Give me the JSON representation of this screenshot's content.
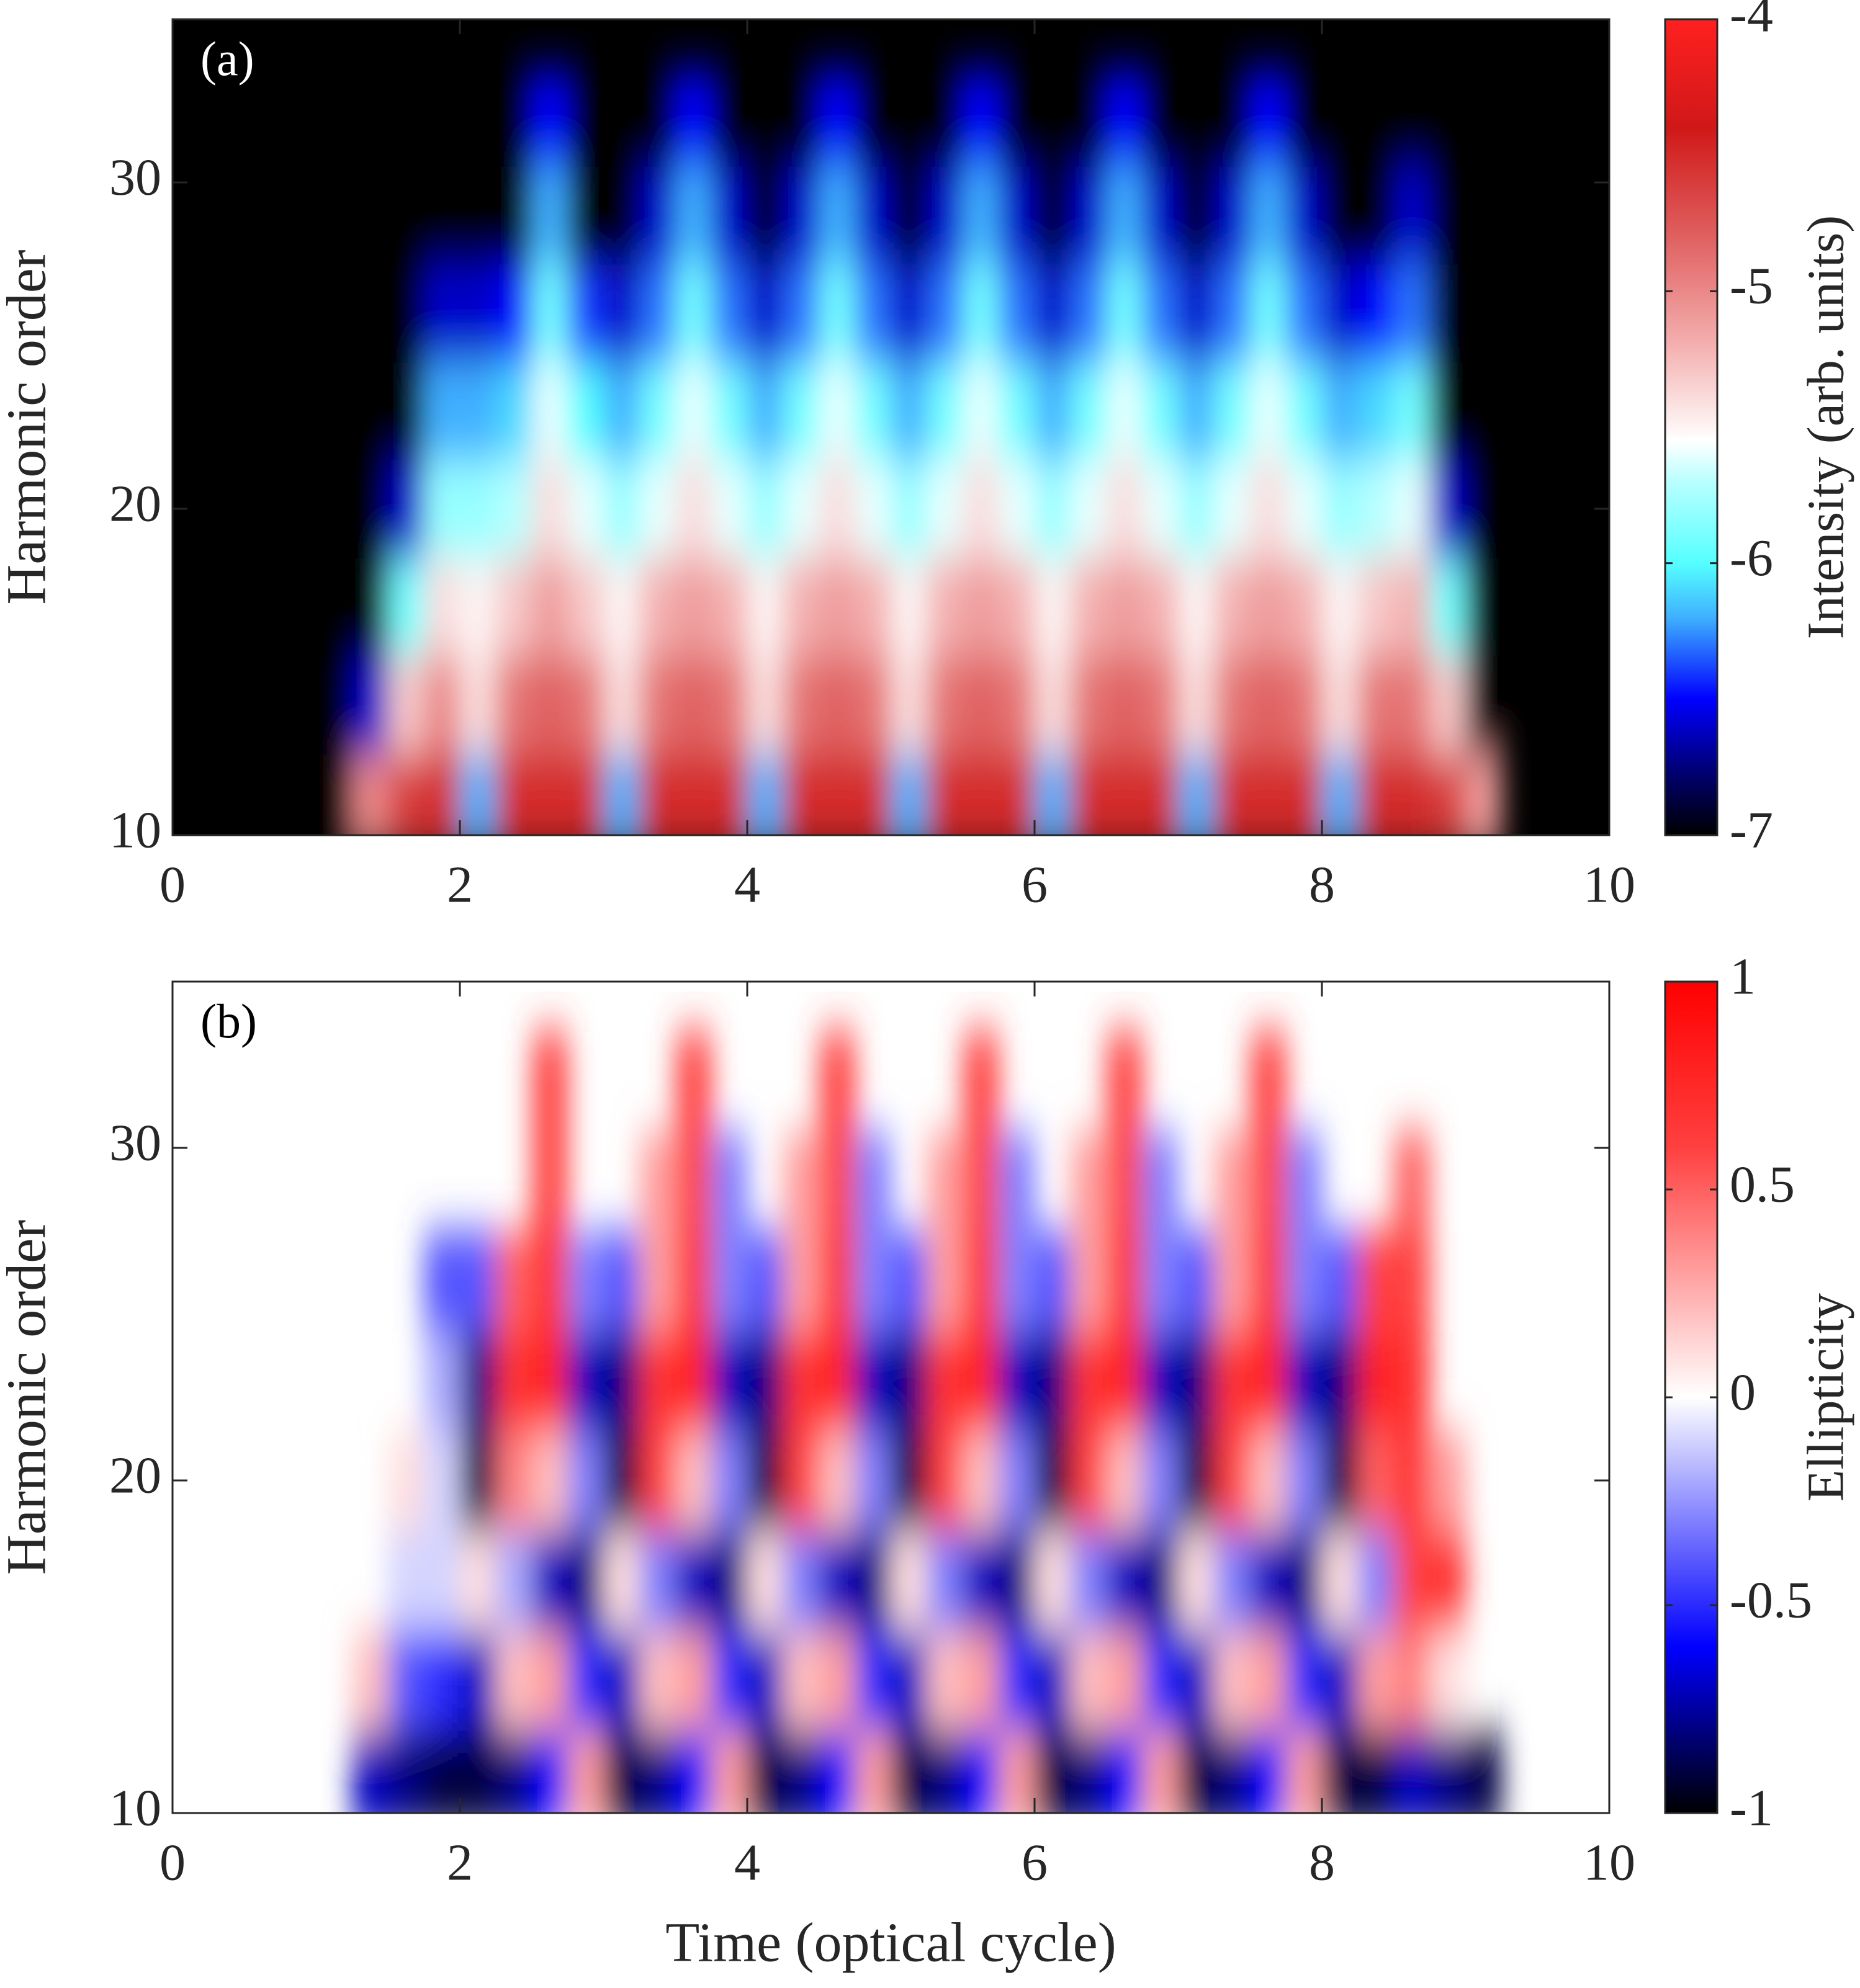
{
  "chart_data": [
    {
      "type": "heatmap",
      "annotation": "(a)",
      "ylabel": "Harmonic order",
      "clabel": "Intensity (arb. units)",
      "background": "#000000",
      "xlim": [
        0,
        10
      ],
      "xticks": [
        0,
        2,
        4,
        6,
        8,
        10
      ],
      "ylim": [
        10,
        35
      ],
      "yticks": [
        10,
        20,
        30
      ],
      "clim": [
        -7,
        -4
      ],
      "cticks": [
        -7,
        -6,
        -5,
        -4
      ],
      "colormap": [
        {
          "value": -7,
          "color": "#000000"
        },
        {
          "value": -6.75,
          "color": "#00007a"
        },
        {
          "value": -6.5,
          "color": "#0000ff"
        },
        {
          "value": -6.2,
          "color": "#3fb0ff"
        },
        {
          "value": -6,
          "color": "#55ffff"
        },
        {
          "value": -5.7,
          "color": "#b8ffff"
        },
        {
          "value": -5.55,
          "color": "#ffffff"
        },
        {
          "value": -5.2,
          "color": "#f4b0b0"
        },
        {
          "value": -4.8,
          "color": "#e06060"
        },
        {
          "value": -4.4,
          "color": "#d01818"
        },
        {
          "value": -4,
          "color": "#ff2020"
        }
      ],
      "x": [
        1.125,
        1.375,
        1.625,
        1.875,
        2.125,
        2.375,
        2.625,
        2.875,
        3.125,
        3.375,
        3.625,
        3.875,
        4.125,
        4.375,
        4.625,
        4.875,
        5.125,
        5.375,
        5.625,
        5.875,
        6.125,
        6.375,
        6.625,
        6.875,
        7.125,
        7.375,
        7.625,
        7.875,
        8.125,
        8.375,
        8.625,
        8.875,
        9.125
      ],
      "y": [
        11,
        14,
        17,
        20,
        23,
        26,
        29,
        32
      ],
      "z": [
        [
          -7,
          -5,
          -4.6,
          -4.5,
          -6.2,
          -4.5,
          -4.5,
          -4.5,
          -6.2,
          -4.5,
          -4.5,
          -4.5,
          -6.2,
          -4.5,
          -4.5,
          -4.5,
          -6.2,
          -4.5,
          -4.5,
          -4.5,
          -6.2,
          -4.5,
          -4.5,
          -4.5,
          -6.2,
          -4.5,
          -4.5,
          -4.5,
          -6.2,
          -4.5,
          -4.5,
          -4.6,
          -5.1
        ],
        [
          -7,
          -6.6,
          -5.3,
          -5,
          -5.4,
          -4.9,
          -4.8,
          -4.9,
          -5.4,
          -4.9,
          -4.8,
          -4.9,
          -5.4,
          -4.9,
          -4.8,
          -4.9,
          -5.4,
          -4.9,
          -4.8,
          -4.9,
          -5.4,
          -4.9,
          -4.8,
          -4.9,
          -5.4,
          -4.9,
          -4.8,
          -4.9,
          -5.4,
          -4.9,
          -4.9,
          -5.3,
          -7
        ],
        [
          -7,
          -7,
          -5.9,
          -5.4,
          -5.5,
          -5.3,
          -5.1,
          -5.3,
          -5.5,
          -5.2,
          -5.1,
          -5.2,
          -5.5,
          -5.2,
          -5.1,
          -5.2,
          -5.5,
          -5.2,
          -5.1,
          -5.2,
          -5.5,
          -5.2,
          -5.1,
          -5.2,
          -5.5,
          -5.2,
          -5.1,
          -5.2,
          -5.5,
          -5.3,
          -5.2,
          -5.9,
          -7
        ],
        [
          -7,
          -7,
          -6.6,
          -5.8,
          -5.8,
          -5.7,
          -5.4,
          -5.6,
          -5.8,
          -5.6,
          -5.4,
          -5.6,
          -5.8,
          -5.6,
          -5.4,
          -5.6,
          -5.8,
          -5.6,
          -5.4,
          -5.6,
          -5.8,
          -5.6,
          -5.4,
          -5.6,
          -5.8,
          -5.6,
          -5.4,
          -5.6,
          -5.8,
          -5.7,
          -5.6,
          -6.6,
          -7
        ],
        [
          -7,
          -7,
          -7,
          -6.2,
          -6.2,
          -6.1,
          -5.6,
          -6,
          -6.2,
          -5.9,
          -5.6,
          -5.9,
          -6.2,
          -5.9,
          -5.6,
          -5.9,
          -6.2,
          -5.9,
          -5.6,
          -5.9,
          -6.2,
          -5.9,
          -5.6,
          -5.9,
          -6.2,
          -5.9,
          -5.6,
          -5.9,
          -6.2,
          -6.1,
          -5.9,
          -7,
          -7
        ],
        [
          -7,
          -7,
          -7,
          -6.6,
          -6.6,
          -6.5,
          -5.9,
          -6.4,
          -6.6,
          -6.3,
          -5.9,
          -6.3,
          -6.6,
          -6.3,
          -5.9,
          -6.3,
          -6.6,
          -6.3,
          -5.9,
          -6.3,
          -6.6,
          -6.3,
          -5.9,
          -6.3,
          -6.6,
          -6.3,
          -5.9,
          -6.3,
          -6.6,
          -6.5,
          -6.3,
          -7,
          -7
        ],
        [
          -7,
          -7,
          -7,
          -7,
          -7,
          -7,
          -6.2,
          -7,
          -7,
          -6.6,
          -6.2,
          -6.6,
          -7,
          -6.6,
          -6.2,
          -6.6,
          -7,
          -6.6,
          -6.2,
          -6.6,
          -7,
          -6.6,
          -6.2,
          -6.6,
          -7,
          -6.6,
          -6.2,
          -6.6,
          -7,
          -7,
          -6.6,
          -7,
          -7
        ],
        [
          -7,
          -7,
          -7,
          -7,
          -7,
          -7,
          -6.5,
          -7,
          -7,
          -7,
          -6.5,
          -7,
          -7,
          -7,
          -6.5,
          -7,
          -7,
          -7,
          -6.5,
          -7,
          -7,
          -7,
          -6.5,
          -7,
          -7,
          -7,
          -6.5,
          -7,
          -7,
          -7,
          -7,
          -7,
          -7
        ]
      ]
    },
    {
      "type": "heatmap",
      "annotation": "(b)",
      "ylabel": "Harmonic order",
      "clabel": "Ellipticity",
      "xlabel": "Time (optical cycle)",
      "background": "#ffffff",
      "xlim": [
        0,
        10
      ],
      "xticks": [
        0,
        2,
        4,
        6,
        8,
        10
      ],
      "ylim": [
        10,
        35
      ],
      "yticks": [
        10,
        20,
        30
      ],
      "clim": [
        -1,
        1
      ],
      "cticks": [
        -1,
        -0.5,
        0,
        0.5,
        1
      ],
      "colormap": [
        {
          "value": -1,
          "color": "#000000"
        },
        {
          "value": -0.8,
          "color": "#000080"
        },
        {
          "value": -0.6,
          "color": "#0000ff"
        },
        {
          "value": -0.3,
          "color": "#7f7fff"
        },
        {
          "value": 0,
          "color": "#ffffff"
        },
        {
          "value": 0.3,
          "color": "#ff9f9f"
        },
        {
          "value": 0.6,
          "color": "#ff4040"
        },
        {
          "value": 1,
          "color": "#ff0000"
        }
      ],
      "x": [
        1.125,
        1.375,
        1.625,
        1.875,
        2.125,
        2.375,
        2.625,
        2.875,
        3.125,
        3.375,
        3.625,
        3.875,
        4.125,
        4.375,
        4.625,
        4.875,
        5.125,
        5.375,
        5.625,
        5.875,
        6.125,
        6.375,
        6.625,
        6.875,
        7.125,
        7.375,
        7.625,
        7.875,
        8.125,
        8.375,
        8.625,
        8.875,
        9.125
      ],
      "y": [
        11,
        14,
        17,
        20,
        23,
        26,
        29,
        32
      ],
      "z": [
        [
          null,
          -0.7,
          -0.8,
          -0.9,
          -0.9,
          -0.8,
          -0.6,
          0.3,
          -0.9,
          -0.8,
          -0.6,
          0.3,
          -0.9,
          -0.8,
          -0.6,
          0.3,
          -0.9,
          -0.8,
          -0.6,
          0.3,
          -0.9,
          -0.8,
          -0.6,
          0.3,
          -0.9,
          -0.8,
          -0.6,
          0.3,
          -0.9,
          -0.9,
          -0.7,
          -0.8,
          -0.9
        ],
        [
          null,
          0.2,
          -0.4,
          -0.5,
          -0.7,
          0.2,
          0.3,
          -0.5,
          -0.7,
          0.2,
          0.3,
          -0.5,
          -0.7,
          0.2,
          0.3,
          -0.5,
          -0.7,
          0.2,
          0.3,
          -0.5,
          -0.7,
          0.2,
          0.3,
          -0.5,
          -0.7,
          0.2,
          0.3,
          -0.5,
          -0.7,
          0.3,
          0.4,
          0.1,
          null
        ],
        [
          null,
          null,
          -0.1,
          -0.1,
          0.1,
          -0.2,
          -0.7,
          -0.8,
          0.1,
          -0.3,
          -0.7,
          -0.8,
          0.1,
          -0.3,
          -0.7,
          -0.8,
          0.1,
          -0.3,
          -0.7,
          -0.8,
          0.1,
          -0.3,
          -0.7,
          -0.8,
          0.1,
          -0.3,
          -0.7,
          -0.8,
          0.1,
          -0.3,
          0.6,
          0.7,
          null
        ],
        [
          null,
          null,
          0.1,
          -0.1,
          -0.9,
          0.4,
          0.2,
          -0.3,
          -0.9,
          0.6,
          0.2,
          -0.3,
          -0.9,
          0.6,
          0.2,
          -0.3,
          -0.9,
          0.6,
          0.2,
          -0.3,
          -0.9,
          0.6,
          0.2,
          -0.3,
          -0.9,
          0.6,
          0.2,
          -0.3,
          -0.9,
          0.5,
          0.7,
          0.3,
          null
        ],
        [
          null,
          null,
          null,
          -0.2,
          -0.8,
          0.7,
          0.8,
          -0.7,
          -0.8,
          0.7,
          0.8,
          -0.7,
          -0.8,
          0.7,
          0.8,
          -0.7,
          -0.8,
          0.7,
          0.8,
          -0.7,
          -0.8,
          0.7,
          0.8,
          -0.7,
          -0.8,
          0.7,
          0.8,
          -0.7,
          -0.8,
          0.8,
          0.7,
          null,
          null
        ],
        [
          null,
          null,
          null,
          -0.4,
          -0.4,
          0.5,
          0.7,
          -0.3,
          -0.4,
          0.3,
          0.7,
          -0.3,
          -0.4,
          0.3,
          0.7,
          -0.3,
          -0.4,
          0.3,
          0.7,
          -0.3,
          -0.4,
          0.3,
          0.7,
          -0.3,
          -0.4,
          0.3,
          0.7,
          -0.3,
          -0.4,
          0.6,
          0.6,
          null,
          null
        ],
        [
          null,
          null,
          null,
          null,
          null,
          null,
          0.6,
          null,
          null,
          0.3,
          0.6,
          -0.3,
          null,
          0.3,
          0.6,
          -0.3,
          null,
          0.3,
          0.6,
          -0.3,
          null,
          0.3,
          0.6,
          -0.3,
          null,
          0.3,
          0.6,
          -0.3,
          null,
          null,
          0.5,
          null,
          null
        ],
        [
          null,
          null,
          null,
          null,
          null,
          null,
          0.6,
          null,
          null,
          null,
          0.6,
          null,
          null,
          null,
          0.6,
          null,
          null,
          null,
          0.6,
          null,
          null,
          null,
          0.6,
          null,
          null,
          null,
          0.6,
          null,
          null,
          null,
          null,
          null,
          null
        ]
      ]
    }
  ]
}
